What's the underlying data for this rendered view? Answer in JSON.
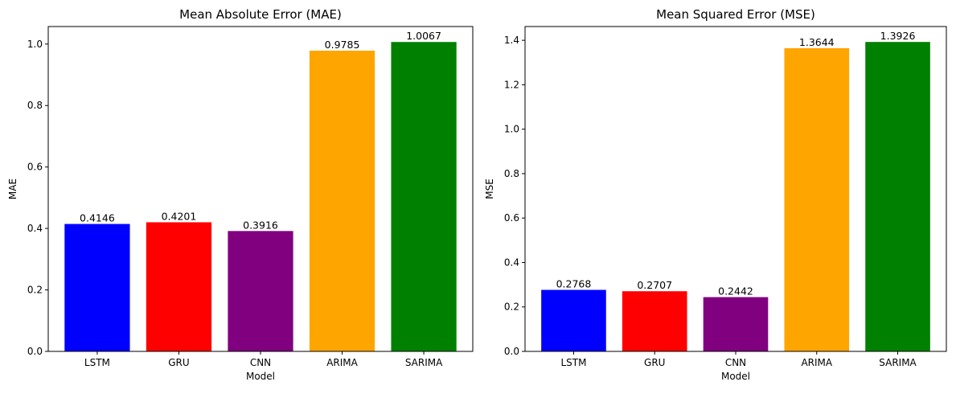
{
  "chart_data": [
    {
      "type": "bar",
      "title": "Mean Absolute Error (MAE)",
      "xlabel": "Model",
      "ylabel": "MAE",
      "categories": [
        "LSTM",
        "GRU",
        "CNN",
        "ARIMA",
        "SARIMA"
      ],
      "values": [
        0.4146,
        0.4201,
        0.3916,
        0.9785,
        1.0067
      ],
      "value_labels": [
        "0.4146",
        "0.4201",
        "0.3916",
        "0.9785",
        "1.0067"
      ],
      "colors": [
        "#0000ff",
        "#ff0000",
        "#800080",
        "#ffa500",
        "#008000"
      ],
      "ylim": [
        0,
        1.057
      ],
      "yticks": [
        0.0,
        0.2,
        0.4,
        0.6,
        0.8,
        1.0
      ],
      "ytick_labels": [
        "0.0",
        "0.2",
        "0.4",
        "0.6",
        "0.8",
        "1.0"
      ],
      "grid": false,
      "legend": "none"
    },
    {
      "type": "bar",
      "title": "Mean Squared Error (MSE)",
      "xlabel": "Model",
      "ylabel": "MSE",
      "categories": [
        "LSTM",
        "GRU",
        "CNN",
        "ARIMA",
        "SARIMA"
      ],
      "values": [
        0.2768,
        0.2707,
        0.2442,
        1.3644,
        1.3926
      ],
      "value_labels": [
        "0.2768",
        "0.2707",
        "0.2442",
        "1.3644",
        "1.3926"
      ],
      "colors": [
        "#0000ff",
        "#ff0000",
        "#800080",
        "#ffa500",
        "#008000"
      ],
      "ylim": [
        0,
        1.462
      ],
      "yticks": [
        0.0,
        0.2,
        0.4,
        0.6,
        0.8,
        1.0,
        1.2,
        1.4
      ],
      "ytick_labels": [
        "0.0",
        "0.2",
        "0.4",
        "0.6",
        "0.8",
        "1.0",
        "1.2",
        "1.4"
      ],
      "grid": false,
      "legend": "none"
    }
  ]
}
